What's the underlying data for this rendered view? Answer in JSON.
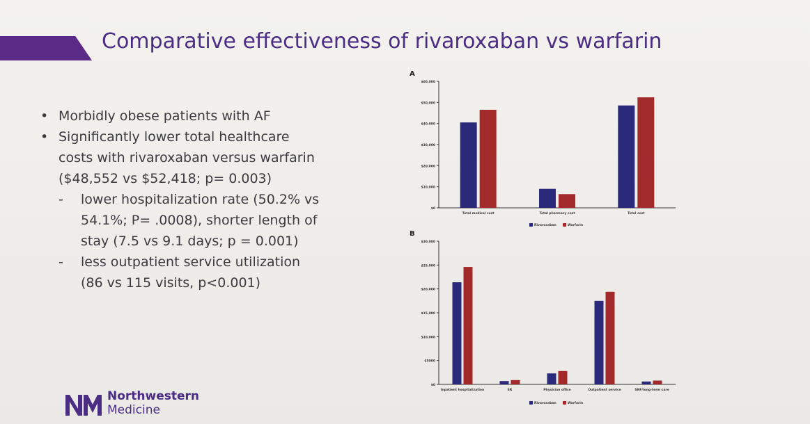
{
  "slide": {
    "title": "Comparative effectiveness of rivaroxaban vs warfarin",
    "bullets": [
      {
        "text": "Morbidly obese patients with AF"
      },
      {
        "text_lines": [
          "Significantly lower total healthcare",
          "costs with rivaroxaban versus warfarin",
          "($48,552 vs $52,418; p= 0.003)"
        ]
      }
    ],
    "sub_bullets": [
      {
        "lines": [
          "lower hospitalization rate (50.2% vs",
          "54.1%; P= .0008), shorter length of",
          "stay (7.5 vs 9.1 days; p = 0.001)"
        ]
      },
      {
        "lines": [
          "less outpatient service utilization",
          "(86 vs 115 visits, p<0.001)"
        ]
      }
    ],
    "bullet_glyph": "•",
    "dash_glyph": "-",
    "logo": {
      "line1": "Northwestern",
      "line2": "Medicine"
    }
  },
  "colors": {
    "rivaroxaban": "#2b2a7a",
    "warfarin": "#a32a2a",
    "title": "#4b2d83"
  },
  "chart_data": [
    {
      "type": "bar",
      "panel_label": "A",
      "categories": [
        "Total medical cost",
        "Total pharmacy cost",
        "Total cost"
      ],
      "series": [
        {
          "name": "Rivaroxaban",
          "values": [
            40500,
            9000,
            48552
          ]
        },
        {
          "name": "Warfarin",
          "values": [
            46500,
            6500,
            52418
          ]
        }
      ],
      "ylim": [
        0,
        60000
      ],
      "yticks": [
        "$0",
        "$10,000",
        "$20,000",
        "$30,000",
        "$40,000",
        "$50,000",
        "$60,000"
      ],
      "legend_placement": "bottom"
    },
    {
      "type": "bar",
      "panel_label": "B",
      "categories": [
        "Inpatient hospitalization",
        "ER",
        "Physician office",
        "Outpatient service",
        "SNF/long-term care"
      ],
      "series": [
        {
          "name": "Rivaroxaban",
          "values": [
            21400,
            700,
            2300,
            17500,
            600
          ]
        },
        {
          "name": "Warfarin",
          "values": [
            24600,
            900,
            2800,
            19400,
            800
          ]
        }
      ],
      "ylim": [
        0,
        30000
      ],
      "yticks": [
        "$0",
        "$5000",
        "$10,000",
        "$15,000",
        "$20,000",
        "$25,000",
        "$30,000"
      ],
      "legend_placement": "bottom"
    }
  ]
}
